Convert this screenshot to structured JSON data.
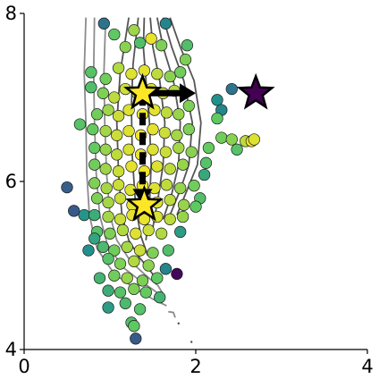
{
  "chart_data": {
    "type": "scatter",
    "title": "",
    "xlabel": "",
    "ylabel": "",
    "xlim": [
      0,
      4
    ],
    "ylim": [
      4,
      8
    ],
    "x_ticks": [
      {
        "value": 0,
        "label": "0"
      },
      {
        "value": 2,
        "label": "2"
      },
      {
        "value": 4,
        "label": "4"
      }
    ],
    "y_ticks": [
      {
        "value": 4,
        "label": "4"
      },
      {
        "value": 6,
        "label": "6"
      },
      {
        "value": 8,
        "label": "8"
      }
    ],
    "grid": false,
    "colormap": "viridis",
    "contours": [
      [
        [
          0.72,
          7.95
        ],
        [
          0.7,
          7.3
        ],
        [
          0.72,
          6.7
        ],
        [
          0.73,
          6.1
        ],
        [
          0.76,
          5.6
        ],
        [
          0.85,
          5.2
        ],
        [
          1.05,
          4.9
        ],
        [
          1.3,
          4.72
        ],
        [
          1.5,
          4.6
        ],
        [
          1.66,
          4.52
        ]
      ],
      [
        [
          0.82,
          7.95
        ],
        [
          0.81,
          7.3
        ],
        [
          0.82,
          6.7
        ],
        [
          0.84,
          6.1
        ],
        [
          0.88,
          5.6
        ],
        [
          0.97,
          5.25
        ],
        [
          1.15,
          4.98
        ],
        [
          1.35,
          4.82
        ],
        [
          1.52,
          4.7
        ],
        [
          1.64,
          4.6
        ]
      ],
      [
        [
          0.95,
          7.95
        ],
        [
          0.93,
          7.3
        ],
        [
          0.94,
          6.7
        ],
        [
          0.96,
          6.1
        ],
        [
          1.0,
          5.6
        ],
        [
          1.08,
          5.3
        ],
        [
          1.24,
          5.05
        ],
        [
          1.42,
          4.88
        ],
        [
          1.56,
          4.76
        ],
        [
          1.62,
          4.66
        ]
      ],
      [
        [
          1.22,
          7.95
        ],
        [
          1.12,
          7.3
        ],
        [
          1.08,
          6.7
        ],
        [
          1.1,
          6.1
        ],
        [
          1.14,
          5.6
        ],
        [
          1.22,
          5.3
        ],
        [
          1.34,
          5.1
        ],
        [
          1.46,
          4.95
        ],
        [
          1.54,
          4.84
        ]
      ],
      [
        [
          1.33,
          7.95
        ],
        [
          1.27,
          7.4
        ],
        [
          1.25,
          6.9
        ],
        [
          1.26,
          6.3
        ],
        [
          1.3,
          5.7
        ],
        [
          1.36,
          5.35
        ],
        [
          1.44,
          5.12
        ]
      ],
      [
        [
          1.4,
          7.95
        ],
        [
          1.39,
          7.6
        ],
        [
          1.42,
          7.2
        ],
        [
          1.46,
          6.7
        ],
        [
          1.48,
          6.2
        ],
        [
          1.46,
          5.7
        ],
        [
          1.42,
          5.3
        ]
      ],
      [
        [
          1.47,
          7.95
        ],
        [
          1.5,
          7.6
        ],
        [
          1.58,
          7.2
        ],
        [
          1.64,
          6.7
        ],
        [
          1.62,
          6.2
        ],
        [
          1.56,
          5.8
        ],
        [
          1.5,
          5.45
        ]
      ],
      [
        [
          1.55,
          7.95
        ],
        [
          1.62,
          7.6
        ],
        [
          1.74,
          7.2
        ],
        [
          1.82,
          6.7
        ],
        [
          1.8,
          6.2
        ],
        [
          1.72,
          5.85
        ],
        [
          1.62,
          5.55
        ]
      ],
      [
        [
          1.62,
          7.95
        ],
        [
          1.72,
          7.6
        ],
        [
          1.86,
          7.2
        ],
        [
          1.96,
          6.7
        ],
        [
          1.92,
          6.2
        ],
        [
          1.82,
          5.9
        ],
        [
          1.7,
          5.6
        ]
      ],
      [
        [
          1.7,
          7.95
        ],
        [
          1.82,
          7.6
        ],
        [
          1.98,
          7.2
        ],
        [
          2.06,
          6.7
        ],
        [
          2.02,
          6.2
        ],
        [
          1.9,
          5.9
        ],
        [
          1.78,
          5.6
        ]
      ]
    ],
    "dashed_contour": [
      [
        1.68,
        4.45
      ],
      [
        1.74,
        4.44
      ],
      [
        1.76,
        4.38
      ]
    ],
    "dots": [
      [
        1.8,
        4.31
      ],
      [
        1.95,
        4.09
      ]
    ],
    "points": [
      {
        "x": 0.93,
        "y": 7.88,
        "c": 0.38
      },
      {
        "x": 1.28,
        "y": 7.8,
        "c": 0.85
      },
      {
        "x": 1.65,
        "y": 7.88,
        "c": 0.45
      },
      {
        "x": 1.35,
        "y": 7.65,
        "c": 0.7
      },
      {
        "x": 1.48,
        "y": 7.7,
        "c": 0.97
      },
      {
        "x": 1.6,
        "y": 7.62,
        "c": 0.8
      },
      {
        "x": 1.05,
        "y": 7.75,
        "c": 0.75
      },
      {
        "x": 1.18,
        "y": 7.6,
        "c": 0.82
      },
      {
        "x": 1.9,
        "y": 7.62,
        "c": 0.7
      },
      {
        "x": 1.88,
        "y": 7.45,
        "c": 0.8
      },
      {
        "x": 0.78,
        "y": 7.3,
        "c": 0.72
      },
      {
        "x": 0.95,
        "y": 7.22,
        "c": 0.78
      },
      {
        "x": 1.1,
        "y": 7.35,
        "c": 0.88
      },
      {
        "x": 1.25,
        "y": 7.28,
        "c": 0.95
      },
      {
        "x": 1.4,
        "y": 7.32,
        "c": 0.96
      },
      {
        "x": 1.55,
        "y": 7.28,
        "c": 0.9
      },
      {
        "x": 1.7,
        "y": 7.25,
        "c": 0.82
      },
      {
        "x": 1.82,
        "y": 7.3,
        "c": 0.78
      },
      {
        "x": 0.78,
        "y": 7.12,
        "c": 0.7
      },
      {
        "x": 0.92,
        "y": 7.05,
        "c": 0.8
      },
      {
        "x": 1.05,
        "y": 7.0,
        "c": 0.9
      },
      {
        "x": 1.18,
        "y": 7.1,
        "c": 0.93
      },
      {
        "x": 1.32,
        "y": 7.05,
        "c": 0.97
      },
      {
        "x": 1.48,
        "y": 7.1,
        "c": 0.95
      },
      {
        "x": 1.62,
        "y": 7.05,
        "c": 0.92
      },
      {
        "x": 1.75,
        "y": 7.08,
        "c": 0.88
      },
      {
        "x": 1.92,
        "y": 6.9,
        "c": 0.8
      },
      {
        "x": 2.25,
        "y": 6.97,
        "c": 0.5
      },
      {
        "x": 2.3,
        "y": 6.85,
        "c": 0.45
      },
      {
        "x": 2.42,
        "y": 7.1,
        "c": 0.38
      },
      {
        "x": 0.85,
        "y": 6.8,
        "c": 0.78
      },
      {
        "x": 0.98,
        "y": 6.85,
        "c": 0.85
      },
      {
        "x": 1.1,
        "y": 6.78,
        "c": 0.92
      },
      {
        "x": 1.22,
        "y": 6.85,
        "c": 0.95
      },
      {
        "x": 1.38,
        "y": 6.8,
        "c": 0.97
      },
      {
        "x": 1.52,
        "y": 6.85,
        "c": 0.96
      },
      {
        "x": 1.66,
        "y": 6.82,
        "c": 0.9
      },
      {
        "x": 1.8,
        "y": 6.8,
        "c": 0.84
      },
      {
        "x": 2.25,
        "y": 6.75,
        "c": 0.75
      },
      {
        "x": 0.65,
        "y": 6.68,
        "c": 0.72
      },
      {
        "x": 0.8,
        "y": 6.62,
        "c": 0.76
      },
      {
        "x": 0.95,
        "y": 6.6,
        "c": 0.86
      },
      {
        "x": 1.08,
        "y": 6.55,
        "c": 0.92
      },
      {
        "x": 1.22,
        "y": 6.6,
        "c": 0.95
      },
      {
        "x": 1.36,
        "y": 6.55,
        "c": 0.98
      },
      {
        "x": 1.5,
        "y": 6.62,
        "c": 0.96
      },
      {
        "x": 1.64,
        "y": 6.58,
        "c": 0.92
      },
      {
        "x": 1.78,
        "y": 6.55,
        "c": 0.86
      },
      {
        "x": 1.92,
        "y": 6.62,
        "c": 0.8
      },
      {
        "x": 2.3,
        "y": 6.52,
        "c": 0.78
      },
      {
        "x": 2.42,
        "y": 6.5,
        "c": 0.82
      },
      {
        "x": 2.58,
        "y": 6.48,
        "c": 0.9
      },
      {
        "x": 2.65,
        "y": 6.48,
        "c": 0.98
      },
      {
        "x": 2.68,
        "y": 6.5,
        "c": 0.95
      },
      {
        "x": 2.15,
        "y": 6.4,
        "c": 0.76
      },
      {
        "x": 2.48,
        "y": 6.38,
        "c": 0.72
      },
      {
        "x": 0.82,
        "y": 6.4,
        "c": 0.76
      },
      {
        "x": 0.95,
        "y": 6.38,
        "c": 0.84
      },
      {
        "x": 1.08,
        "y": 6.32,
        "c": 0.9
      },
      {
        "x": 1.22,
        "y": 6.38,
        "c": 0.94
      },
      {
        "x": 1.36,
        "y": 6.32,
        "c": 0.97
      },
      {
        "x": 1.5,
        "y": 6.38,
        "c": 0.95
      },
      {
        "x": 1.65,
        "y": 6.35,
        "c": 0.92
      },
      {
        "x": 1.8,
        "y": 6.4,
        "c": 0.86
      },
      {
        "x": 1.95,
        "y": 6.35,
        "c": 0.82
      },
      {
        "x": 2.12,
        "y": 6.22,
        "c": 0.72
      },
      {
        "x": 0.82,
        "y": 6.2,
        "c": 0.78
      },
      {
        "x": 0.95,
        "y": 6.15,
        "c": 0.85
      },
      {
        "x": 1.1,
        "y": 6.12,
        "c": 0.92
      },
      {
        "x": 1.25,
        "y": 6.18,
        "c": 0.96
      },
      {
        "x": 1.4,
        "y": 6.12,
        "c": 0.98
      },
      {
        "x": 1.55,
        "y": 6.18,
        "c": 0.95
      },
      {
        "x": 1.7,
        "y": 6.15,
        "c": 0.9
      },
      {
        "x": 1.85,
        "y": 6.2,
        "c": 0.84
      },
      {
        "x": 2.1,
        "y": 6.08,
        "c": 0.6
      },
      {
        "x": 0.5,
        "y": 5.93,
        "c": 0.3
      },
      {
        "x": 0.82,
        "y": 5.98,
        "c": 0.8
      },
      {
        "x": 0.96,
        "y": 5.92,
        "c": 0.86
      },
      {
        "x": 1.1,
        "y": 5.96,
        "c": 0.92
      },
      {
        "x": 1.24,
        "y": 5.9,
        "c": 0.95
      },
      {
        "x": 1.38,
        "y": 5.95,
        "c": 0.98
      },
      {
        "x": 1.52,
        "y": 5.92,
        "c": 0.95
      },
      {
        "x": 1.66,
        "y": 5.96,
        "c": 0.9
      },
      {
        "x": 1.82,
        "y": 5.92,
        "c": 0.84
      },
      {
        "x": 1.98,
        "y": 5.95,
        "c": 0.78
      },
      {
        "x": 2.05,
        "y": 5.8,
        "c": 0.7
      },
      {
        "x": 0.85,
        "y": 5.8,
        "c": 0.8
      },
      {
        "x": 0.98,
        "y": 5.75,
        "c": 0.86
      },
      {
        "x": 1.12,
        "y": 5.8,
        "c": 0.92
      },
      {
        "x": 1.26,
        "y": 5.72,
        "c": 0.96
      },
      {
        "x": 1.4,
        "y": 5.78,
        "c": 0.98
      },
      {
        "x": 1.55,
        "y": 5.75,
        "c": 0.95
      },
      {
        "x": 1.7,
        "y": 5.78,
        "c": 0.9
      },
      {
        "x": 1.86,
        "y": 5.72,
        "c": 0.84
      },
      {
        "x": 2.0,
        "y": 5.7,
        "c": 0.75
      },
      {
        "x": 0.58,
        "y": 5.65,
        "c": 0.28
      },
      {
        "x": 0.7,
        "y": 5.6,
        "c": 0.52
      },
      {
        "x": 0.82,
        "y": 5.6,
        "c": 0.62
      },
      {
        "x": 0.98,
        "y": 5.58,
        "c": 0.86
      },
      {
        "x": 1.12,
        "y": 5.55,
        "c": 0.92
      },
      {
        "x": 1.26,
        "y": 5.6,
        "c": 0.96
      },
      {
        "x": 1.4,
        "y": 5.55,
        "c": 0.97
      },
      {
        "x": 1.55,
        "y": 5.58,
        "c": 0.94
      },
      {
        "x": 1.7,
        "y": 5.55,
        "c": 0.9
      },
      {
        "x": 1.85,
        "y": 5.58,
        "c": 0.84
      },
      {
        "x": 0.85,
        "y": 5.4,
        "c": 0.72
      },
      {
        "x": 1.0,
        "y": 5.38,
        "c": 0.8
      },
      {
        "x": 1.15,
        "y": 5.42,
        "c": 0.88
      },
      {
        "x": 1.3,
        "y": 5.38,
        "c": 0.95
      },
      {
        "x": 1.45,
        "y": 5.42,
        "c": 0.92
      },
      {
        "x": 1.6,
        "y": 5.38,
        "c": 0.88
      },
      {
        "x": 1.82,
        "y": 5.4,
        "c": 0.55
      },
      {
        "x": 0.82,
        "y": 5.32,
        "c": 0.58
      },
      {
        "x": 0.75,
        "y": 5.18,
        "c": 0.5
      },
      {
        "x": 0.92,
        "y": 5.22,
        "c": 0.68
      },
      {
        "x": 1.05,
        "y": 5.18,
        "c": 0.78
      },
      {
        "x": 1.2,
        "y": 5.22,
        "c": 0.86
      },
      {
        "x": 1.35,
        "y": 5.18,
        "c": 0.92
      },
      {
        "x": 1.5,
        "y": 5.15,
        "c": 0.8
      },
      {
        "x": 1.68,
        "y": 5.18,
        "c": 0.7
      },
      {
        "x": 0.98,
        "y": 5.08,
        "c": 0.72
      },
      {
        "x": 1.12,
        "y": 5.02,
        "c": 0.8
      },
      {
        "x": 1.28,
        "y": 5.05,
        "c": 0.88
      },
      {
        "x": 1.45,
        "y": 5.0,
        "c": 0.82
      },
      {
        "x": 1.65,
        "y": 4.96,
        "c": 0.45
      },
      {
        "x": 1.78,
        "y": 4.9,
        "c": 0.02
      },
      {
        "x": 0.88,
        "y": 4.85,
        "c": 0.65
      },
      {
        "x": 1.05,
        "y": 4.88,
        "c": 0.78
      },
      {
        "x": 1.2,
        "y": 4.85,
        "c": 0.84
      },
      {
        "x": 1.38,
        "y": 4.82,
        "c": 0.8
      },
      {
        "x": 1.55,
        "y": 4.85,
        "c": 0.75
      },
      {
        "x": 0.98,
        "y": 4.7,
        "c": 0.62
      },
      {
        "x": 1.12,
        "y": 4.68,
        "c": 0.72
      },
      {
        "x": 1.28,
        "y": 4.72,
        "c": 0.8
      },
      {
        "x": 1.42,
        "y": 4.68,
        "c": 0.76
      },
      {
        "x": 1.58,
        "y": 4.62,
        "c": 0.65
      },
      {
        "x": 0.98,
        "y": 4.5,
        "c": 0.55
      },
      {
        "x": 1.18,
        "y": 4.55,
        "c": 0.68
      },
      {
        "x": 1.35,
        "y": 4.48,
        "c": 0.72
      },
      {
        "x": 1.25,
        "y": 4.32,
        "c": 0.7
      },
      {
        "x": 1.28,
        "y": 4.28,
        "c": 0.75
      },
      {
        "x": 1.3,
        "y": 4.13,
        "c": 0.28
      }
    ],
    "stars": [
      {
        "x": 2.7,
        "y": 7.05,
        "c": 0.0,
        "size": "large"
      },
      {
        "x": 1.38,
        "y": 7.05,
        "c": 1.0,
        "size": "large"
      },
      {
        "x": 1.4,
        "y": 5.72,
        "c": 1.0,
        "size": "large"
      }
    ],
    "arrows": [
      {
        "from": [
          1.38,
          7.05
        ],
        "to": [
          2.0,
          7.05
        ],
        "style": "solid"
      },
      {
        "from": [
          1.38,
          7.05
        ],
        "to": [
          1.38,
          5.72
        ],
        "style": "dashed"
      }
    ]
  }
}
